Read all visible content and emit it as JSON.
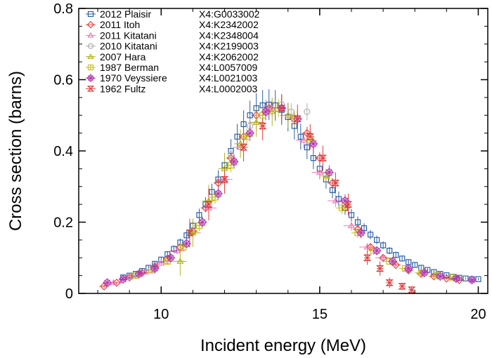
{
  "chart_data": {
    "type": "scatter",
    "xlabel": "Incident energy (MeV)",
    "ylabel": "Cross section (barns)",
    "xlim": [
      7.4,
      20.3
    ],
    "ylim": [
      0,
      0.8
    ],
    "x_ticks": [
      "10",
      "15",
      "20"
    ],
    "y_ticks": [
      "0",
      "0.2",
      "0.4",
      "0.6",
      "0.8"
    ],
    "grid": false,
    "legend_position": "top-left",
    "series": [
      {
        "name": "2012 Plaisir",
        "entry": "X4:G0033002",
        "color": "#2a5fa8",
        "marker": "square",
        "x": [
          8.8,
          9.0,
          9.2,
          9.4,
          9.6,
          9.8,
          10.0,
          10.2,
          10.4,
          10.6,
          10.8,
          11.0,
          11.2,
          11.4,
          11.6,
          11.8,
          12.0,
          12.2,
          12.4,
          12.6,
          12.8,
          13.0,
          13.2,
          13.4,
          13.6,
          13.8,
          14.0,
          14.2,
          14.4,
          14.6,
          14.8,
          15.0,
          15.2,
          15.4,
          15.6,
          15.8,
          16.0,
          16.2,
          16.4,
          16.6,
          16.8,
          17.0,
          17.2,
          17.4,
          17.6,
          17.8,
          18.0,
          18.2,
          18.4,
          18.6,
          18.8,
          19.0,
          19.2,
          19.4,
          19.6,
          19.8,
          20.0
        ],
        "y": [
          0.045,
          0.05,
          0.055,
          0.063,
          0.072,
          0.083,
          0.095,
          0.11,
          0.125,
          0.143,
          0.163,
          0.19,
          0.22,
          0.25,
          0.285,
          0.32,
          0.36,
          0.4,
          0.44,
          0.475,
          0.5,
          0.52,
          0.528,
          0.53,
          0.528,
          0.515,
          0.495,
          0.47,
          0.44,
          0.41,
          0.38,
          0.35,
          0.32,
          0.29,
          0.265,
          0.24,
          0.22,
          0.2,
          0.183,
          0.165,
          0.15,
          0.135,
          0.12,
          0.108,
          0.098,
          0.088,
          0.08,
          0.072,
          0.066,
          0.06,
          0.055,
          0.051,
          0.047,
          0.044,
          0.042,
          0.04,
          0.04
        ],
        "yerr": [
          0.004,
          0.004,
          0.005,
          0.005,
          0.006,
          0.007,
          0.008,
          0.009,
          0.01,
          0.011,
          0.013,
          0.015,
          0.018,
          0.02,
          0.023,
          0.026,
          0.03,
          0.033,
          0.036,
          0.039,
          0.041,
          0.042,
          0.043,
          0.043,
          0.043,
          0.042,
          0.04,
          0.038,
          0.036,
          0.033,
          0.031,
          0.028,
          0.026,
          0.023,
          0.021,
          0.019,
          0.017,
          0.016,
          0.014,
          0.013,
          0.012,
          0.011,
          0.01,
          0.009,
          0.008,
          0.007,
          0.006,
          0.006,
          0.005,
          0.005,
          0.004,
          0.004,
          0.004,
          0.004,
          0.003,
          0.003,
          0.003
        ]
      },
      {
        "name": "2011 Itoh",
        "entry": "X4:K2342002",
        "color": "#e8453c",
        "marker": "diamond",
        "x": [
          8.2,
          8.6,
          9.0,
          9.4,
          9.8,
          10.2,
          10.6,
          11.0,
          11.4,
          11.8,
          12.2,
          12.6,
          13.0,
          13.4,
          13.8,
          14.2,
          14.6,
          15.0,
          15.4,
          15.8,
          16.2,
          16.6,
          17.0,
          17.4,
          17.8,
          18.2,
          18.6,
          19.0,
          19.4
        ],
        "y": [
          0.02,
          0.03,
          0.045,
          0.058,
          0.075,
          0.098,
          0.13,
          0.175,
          0.24,
          0.31,
          0.38,
          0.44,
          0.5,
          0.52,
          0.52,
          0.49,
          0.45,
          0.38,
          0.31,
          0.24,
          0.18,
          0.13,
          0.1,
          0.08,
          0.065,
          0.055,
          0.048,
          0.042,
          0.038
        ],
        "yerr": [
          0.004,
          0.004,
          0.005,
          0.005,
          0.006,
          0.007,
          0.008,
          0.01,
          0.012,
          0.014,
          0.016,
          0.018,
          0.02,
          0.02,
          0.02,
          0.019,
          0.018,
          0.016,
          0.014,
          0.012,
          0.01,
          0.008,
          0.007,
          0.006,
          0.005,
          0.005,
          0.004,
          0.004,
          0.004
        ],
        "xerr": [
          0.15,
          0.15,
          0.15,
          0.15,
          0.15,
          0.15,
          0.15,
          0.15,
          0.15,
          0.15,
          0.15,
          0.15,
          0.15,
          0.15,
          0.15,
          0.15,
          0.15,
          0.15,
          0.15,
          0.15,
          0.15,
          0.15,
          0.15,
          0.15,
          0.15,
          0.15,
          0.15,
          0.15,
          0.15
        ]
      },
      {
        "name": "2011 Kitatani",
        "entry": "X4:K2348004",
        "color": "#f07ab8",
        "marker": "triangle",
        "x": [
          8.5,
          9.0,
          9.5,
          10.0,
          10.5,
          11.0,
          11.5,
          12.0,
          12.5,
          13.0,
          13.5,
          14.0,
          14.5,
          15.0,
          15.5,
          16.0,
          16.5,
          17.0
        ],
        "y": [
          0.03,
          0.045,
          0.06,
          0.085,
          0.12,
          0.17,
          0.24,
          0.32,
          0.41,
          0.48,
          0.52,
          0.5,
          0.43,
          0.34,
          0.26,
          0.19,
          0.13,
          0.1
        ],
        "yerr": [
          0.005,
          0.006,
          0.007,
          0.008,
          0.01,
          0.012,
          0.015,
          0.018,
          0.022,
          0.024,
          0.025,
          0.025,
          0.022,
          0.02,
          0.017,
          0.014,
          0.012,
          0.01
        ],
        "xerr": [
          0.25,
          0.25,
          0.25,
          0.25,
          0.25,
          0.25,
          0.25,
          0.25,
          0.25,
          0.25,
          0.25,
          0.25,
          0.25,
          0.25,
          0.25,
          0.25,
          0.25,
          0.25
        ]
      },
      {
        "name": "2010 Kitatani",
        "entry": "X4:K2199003",
        "color": "#b0b0b0",
        "marker": "circle",
        "x": [
          12.2,
          12.8,
          13.3,
          13.8,
          14.1,
          14.6
        ],
        "y": [
          0.39,
          0.47,
          0.52,
          0.53,
          0.51,
          0.51
        ],
        "yerr": [
          0.02,
          0.022,
          0.025,
          0.025,
          0.024,
          0.024
        ]
      },
      {
        "name": "2007 Hara",
        "entry": "X4:K2062002",
        "color": "#b5b520",
        "marker": "tri-line",
        "x": [
          10.6,
          11.0,
          11.5,
          12.0,
          12.5,
          13.0,
          13.5,
          14.0
        ],
        "y": [
          0.09,
          0.17,
          0.26,
          0.35,
          0.42,
          0.48,
          0.51,
          0.5
        ],
        "yerr": [
          0.04,
          0.04,
          0.045,
          0.045,
          0.04,
          0.04,
          0.04,
          0.035
        ],
        "xerr": [
          0.2,
          0.2,
          0.2,
          0.2,
          0.2,
          0.2,
          0.2,
          0.2
        ]
      },
      {
        "name": "1987 Berman",
        "entry": "X4:L0057009",
        "color": "#c9c11e",
        "marker": "plus-square",
        "x": [
          9.2,
          9.7,
          10.2,
          10.7,
          11.2,
          11.7,
          12.2,
          12.7,
          13.2,
          13.7,
          14.2,
          14.7,
          15.2,
          15.7,
          16.2,
          16.7,
          17.2,
          17.7,
          18.2,
          18.7,
          19.2
        ],
        "y": [
          0.05,
          0.065,
          0.09,
          0.13,
          0.19,
          0.27,
          0.36,
          0.44,
          0.5,
          0.52,
          0.49,
          0.43,
          0.33,
          0.24,
          0.17,
          0.12,
          0.09,
          0.07,
          0.058,
          0.05,
          0.045
        ],
        "yerr": [
          0.008,
          0.009,
          0.01,
          0.012,
          0.015,
          0.018,
          0.02,
          0.022,
          0.024,
          0.025,
          0.024,
          0.022,
          0.02,
          0.017,
          0.014,
          0.012,
          0.01,
          0.009,
          0.008,
          0.008,
          0.007
        ],
        "xerr": [
          0.2,
          0.2,
          0.2,
          0.2,
          0.2,
          0.2,
          0.2,
          0.2,
          0.2,
          0.2,
          0.2,
          0.2,
          0.2,
          0.2,
          0.2,
          0.2,
          0.2,
          0.2,
          0.2,
          0.2,
          0.2
        ]
      },
      {
        "name": "1970 Veyssiere",
        "entry": "X4:L0021003",
        "color": "#b43cb4",
        "marker": "star-square",
        "x": [
          8.3,
          8.8,
          9.3,
          9.8,
          10.3,
          10.8,
          11.3,
          11.8,
          12.3,
          12.8,
          13.3,
          13.8,
          14.3,
          14.8,
          15.3,
          15.8,
          16.3,
          16.8,
          17.3,
          17.8,
          18.3,
          18.8,
          19.3,
          19.8
        ],
        "y": [
          0.03,
          0.04,
          0.055,
          0.07,
          0.1,
          0.14,
          0.2,
          0.28,
          0.37,
          0.45,
          0.51,
          0.52,
          0.49,
          0.42,
          0.34,
          0.26,
          0.17,
          0.12,
          0.09,
          0.07,
          0.058,
          0.048,
          0.042,
          0.038
        ],
        "yerr": [
          0.006,
          0.007,
          0.008,
          0.009,
          0.01,
          0.012,
          0.015,
          0.018,
          0.02,
          0.022,
          0.024,
          0.024,
          0.023,
          0.022,
          0.02,
          0.018,
          0.015,
          0.012,
          0.01,
          0.009,
          0.008,
          0.007,
          0.007,
          0.006
        ],
        "xerr": [
          0.1,
          0.1,
          0.1,
          0.1,
          0.1,
          0.1,
          0.1,
          0.1,
          0.1,
          0.1,
          0.1,
          0.1,
          0.1,
          0.1,
          0.1,
          0.1,
          0.1,
          0.1,
          0.1,
          0.1,
          0.1,
          0.1,
          0.1,
          0.1
        ]
      },
      {
        "name": "1962 Fultz",
        "entry": "X4:L0002003",
        "color": "#e03c3c",
        "marker": "bowtie",
        "x": [
          10.9,
          11.5,
          12.0,
          12.6,
          13.2,
          13.8,
          14.3,
          14.7,
          15.1,
          15.5,
          15.9,
          16.5,
          16.9,
          17.2,
          17.6,
          17.9
        ],
        "y": [
          0.17,
          0.25,
          0.32,
          0.41,
          0.47,
          0.52,
          0.49,
          0.44,
          0.38,
          0.31,
          0.25,
          0.1,
          0.07,
          0.03,
          0.02,
          0.01
        ],
        "yerr": [
          0.04,
          0.045,
          0.04,
          0.04,
          0.04,
          0.04,
          0.04,
          0.035,
          0.035,
          0.03,
          0.03,
          0.02,
          0.02,
          0.015,
          0.01,
          0.01
        ],
        "xerr": [
          0.1,
          0.1,
          0.1,
          0.1,
          0.1,
          0.1,
          0.1,
          0.1,
          0.1,
          0.1,
          0.1,
          0.1,
          0.1,
          0.1,
          0.1,
          0.1
        ]
      }
    ]
  }
}
